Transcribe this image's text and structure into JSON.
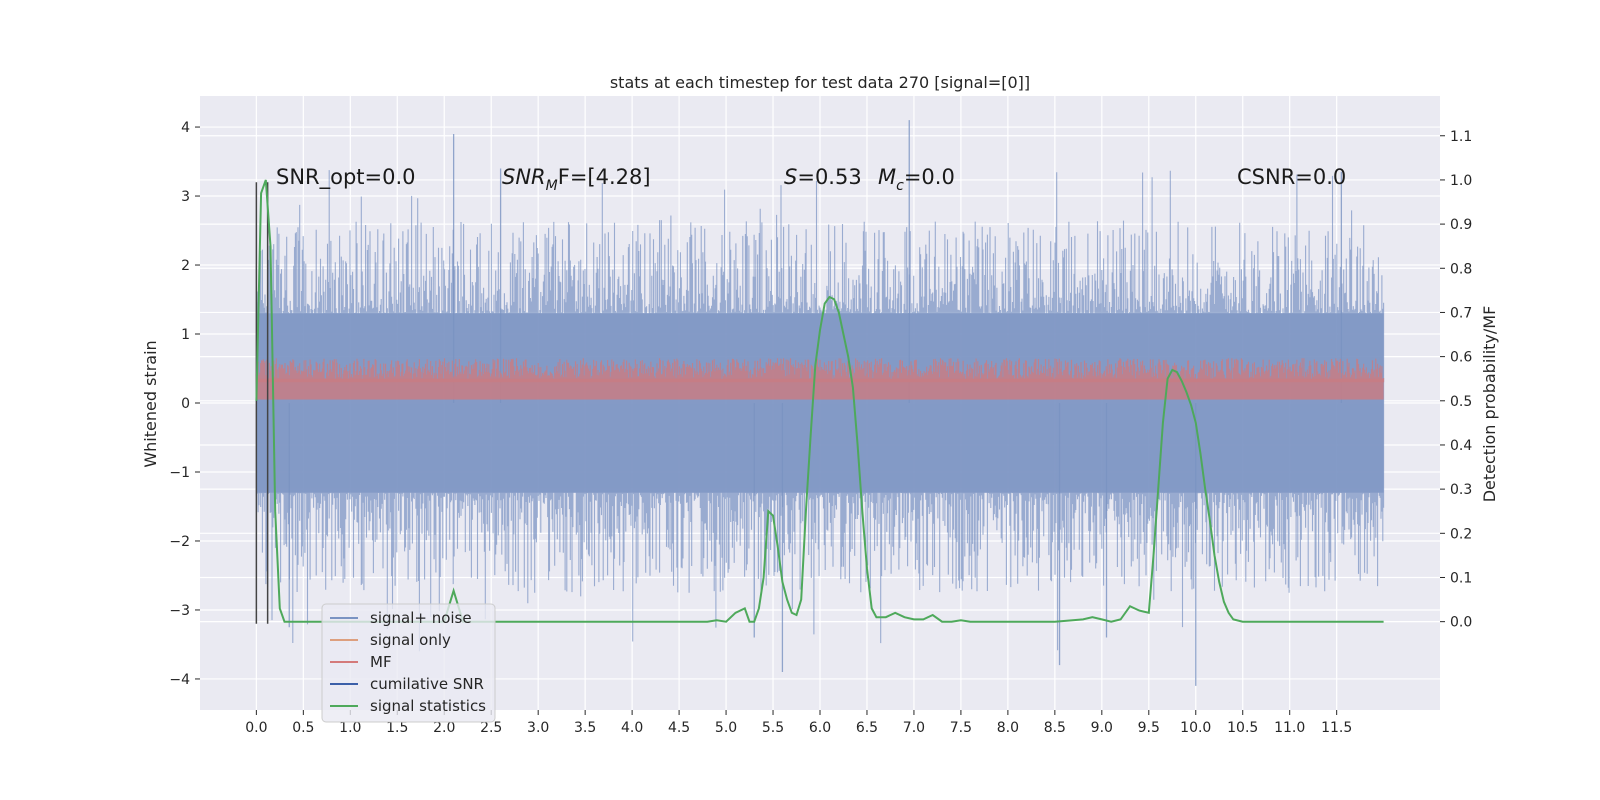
{
  "chart_data": {
    "type": "line",
    "title": "stats at each timestep for test data 270 [signal=[0]]",
    "xlabel": "",
    "ylabel": "Whitened strain",
    "y2label": "Detection probability/MF",
    "xlim": [
      -0.6,
      12.6
    ],
    "ylim": [
      -4.45,
      4.45
    ],
    "y2lim": [
      -0.2,
      1.19
    ],
    "x_ticks": [
      0.0,
      0.5,
      1.0,
      1.5,
      2.0,
      2.5,
      3.0,
      3.5,
      4.0,
      4.5,
      5.0,
      5.5,
      6.0,
      6.5,
      7.0,
      7.5,
      8.0,
      8.5,
      9.0,
      9.5,
      10.0,
      10.5,
      11.0,
      11.5
    ],
    "x_tick_labels": [
      "0.0",
      "0.5",
      "1.0",
      "1.5",
      "2.0",
      "2.5",
      "3.0",
      "3.5",
      "4.0",
      "4.5",
      "5.0",
      "5.5",
      "6.0",
      "6.5",
      "7.0",
      "7.5",
      "8.0",
      "8.5",
      "9.0",
      "9.5",
      "10.0",
      "10.5",
      "11.0",
      "11.5"
    ],
    "y_ticks": [
      4,
      3,
      2,
      1,
      0,
      -1,
      -2,
      -3,
      -4
    ],
    "y_tick_labels": [
      "4",
      "3",
      "2",
      "1",
      "0",
      "−1",
      "−2",
      "−3",
      "−4"
    ],
    "y2_ticks": [
      1.1,
      1.0,
      0.9,
      0.8,
      0.7,
      0.6,
      0.5,
      0.4,
      0.3,
      0.2,
      0.1,
      0.0
    ],
    "y2_tick_labels": [
      "1.1",
      "1.0",
      "0.9",
      "0.8",
      "0.7",
      "0.6",
      "0.5",
      "0.4",
      "0.3",
      "0.2",
      "0.1",
      "0.0"
    ],
    "grid": true,
    "legend_position": "lower-left",
    "annotations": {
      "snr_opt": "SNR_opt=0.0",
      "snr_mf_main": "SNR",
      "snr_mf_sub": "M",
      "snr_mf_tail": "F=[4.28]",
      "s_main": "S",
      "s_tail": "=0.53",
      "mc_main": "M",
      "mc_sub": "c",
      "mc_tail": "=0.0",
      "csnr": "CSNR=0.0"
    },
    "noise_band": {
      "name": "signal+ noise",
      "x_range": [
        0.0,
        12.0
      ],
      "band": [
        -1.3,
        1.3
      ],
      "peaks": [
        3.9,
        4.1,
        3.4,
        3.2
      ],
      "troughs": [
        -3.9,
        -4.1,
        -3.8,
        -3.4
      ]
    },
    "signal_only": {
      "name": "signal only",
      "values": [
        0.0
      ]
    },
    "mf": {
      "name": "MF",
      "band": [
        0.05,
        0.65
      ]
    },
    "cumulative_snr": {
      "name": "cumilative SNR"
    },
    "series": [
      {
        "name": "signal statistics",
        "x": [
          0.0,
          0.05,
          0.1,
          0.15,
          0.2,
          0.25,
          0.3,
          0.4,
          0.5,
          1.0,
          2.0,
          2.1,
          2.2,
          3.0,
          4.0,
          4.5,
          4.8,
          4.9,
          5.0,
          5.1,
          5.2,
          5.25,
          5.3,
          5.35,
          5.4,
          5.45,
          5.5,
          5.55,
          5.6,
          5.65,
          5.7,
          5.75,
          5.8,
          5.85,
          5.9,
          5.95,
          6.0,
          6.05,
          6.1,
          6.15,
          6.2,
          6.25,
          6.3,
          6.35,
          6.4,
          6.45,
          6.5,
          6.55,
          6.6,
          6.7,
          6.8,
          6.9,
          7.0,
          7.1,
          7.2,
          7.3,
          7.4,
          7.5,
          7.6,
          7.8,
          8.0,
          8.5,
          8.8,
          8.9,
          9.0,
          9.1,
          9.2,
          9.3,
          9.4,
          9.5,
          9.55,
          9.6,
          9.65,
          9.7,
          9.75,
          9.8,
          9.85,
          9.9,
          9.95,
          10.0,
          10.05,
          10.1,
          10.15,
          10.2,
          10.25,
          10.3,
          10.35,
          10.4,
          10.5,
          11.0,
          11.5,
          12.0
        ],
        "values": [
          0.5,
          0.97,
          1.0,
          0.85,
          0.25,
          0.03,
          0.0,
          0.0,
          0.0,
          0.0,
          0.0,
          0.07,
          0.0,
          0.0,
          0.0,
          0.0,
          0.0,
          0.003,
          0.0,
          0.02,
          0.03,
          0.0,
          0.0,
          0.03,
          0.1,
          0.25,
          0.24,
          0.17,
          0.09,
          0.05,
          0.02,
          0.015,
          0.05,
          0.25,
          0.42,
          0.58,
          0.66,
          0.72,
          0.735,
          0.73,
          0.7,
          0.65,
          0.6,
          0.53,
          0.4,
          0.25,
          0.12,
          0.03,
          0.01,
          0.01,
          0.02,
          0.01,
          0.005,
          0.005,
          0.015,
          0.0,
          0.0,
          0.003,
          0.0,
          0.0,
          0.0,
          0.0,
          0.005,
          0.01,
          0.005,
          0.0,
          0.005,
          0.035,
          0.025,
          0.02,
          0.15,
          0.3,
          0.45,
          0.55,
          0.57,
          0.565,
          0.545,
          0.52,
          0.49,
          0.45,
          0.38,
          0.3,
          0.23,
          0.15,
          0.09,
          0.045,
          0.02,
          0.005,
          0.0,
          0.0,
          0.0,
          0.0
        ]
      }
    ]
  },
  "legend": [
    {
      "label": "signal+ noise",
      "color": "#7a93c2"
    },
    {
      "label": "signal only",
      "color": "#dd9f7e"
    },
    {
      "label": "MF",
      "color": "#d47a7a"
    },
    {
      "label": "cumilative SNR",
      "color": "#3b5fa8"
    },
    {
      "label": "signal statistics",
      "color": "#4ea95b"
    }
  ],
  "colors": {
    "background": "#eaeaf2",
    "grid": "#ffffff",
    "noise": "#7a93c2",
    "mf": "#c87d84",
    "signal_stats": "#4ea95b",
    "vertical_markers": "#444444"
  }
}
